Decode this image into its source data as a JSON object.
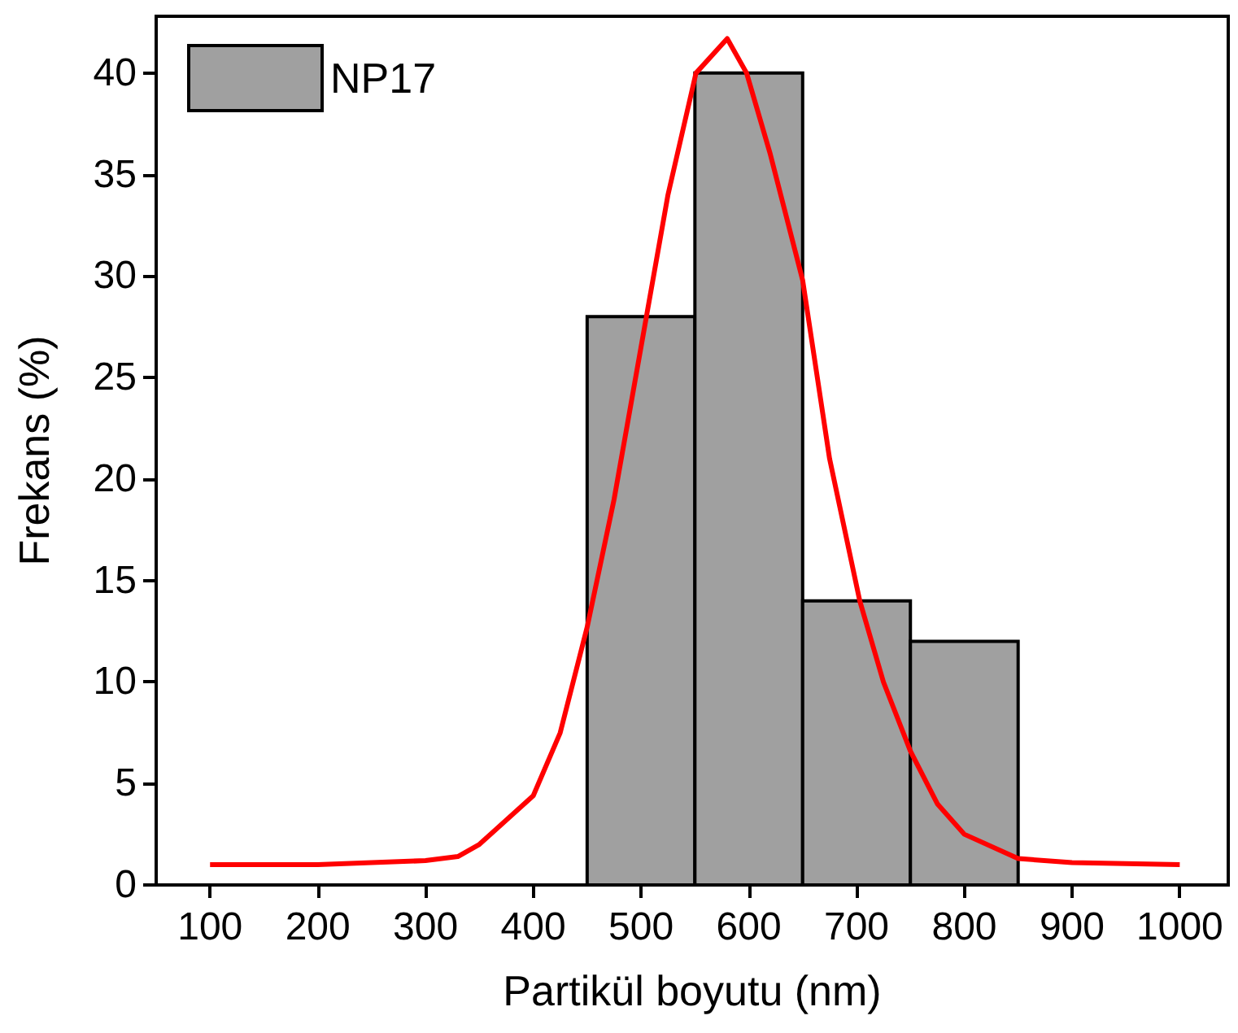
{
  "chart_data": {
    "type": "histogram",
    "xlabel": "Partikül boyutu (nm)",
    "ylabel": "Frekans (%)",
    "bins": [
      450,
      550,
      650,
      750,
      850
    ],
    "series": [
      {
        "name": "NP17",
        "color": "#a0a0a0",
        "values": [
          28,
          40,
          14,
          12
        ]
      },
      {
        "type": "line",
        "color": "#ff0000",
        "x": [
          100,
          200,
          300,
          330,
          350,
          400,
          425,
          450,
          475,
          505,
          525,
          551,
          580,
          598,
          620,
          650,
          675,
          703,
          725,
          750,
          775,
          800,
          850,
          900,
          1000
        ],
        "values": [
          1,
          1,
          1.2,
          1.4,
          2,
          4.4,
          7.5,
          12.7,
          19,
          28,
          34,
          40,
          41.7,
          40,
          36,
          29.8,
          21,
          14,
          10,
          6.6,
          4,
          2.5,
          1.3,
          1.1,
          1
        ]
      }
    ],
    "xlim": [
      50,
      1045
    ],
    "xticks": [
      100,
      200,
      300,
      400,
      500,
      600,
      700,
      800,
      900,
      1000
    ],
    "ylim": [
      0,
      42.8
    ],
    "yticks": [
      0,
      5,
      10,
      15,
      20,
      25,
      30,
      35,
      40
    ],
    "legend": "top left",
    "grid": false,
    "marker": "none",
    "line_style": "solid"
  }
}
